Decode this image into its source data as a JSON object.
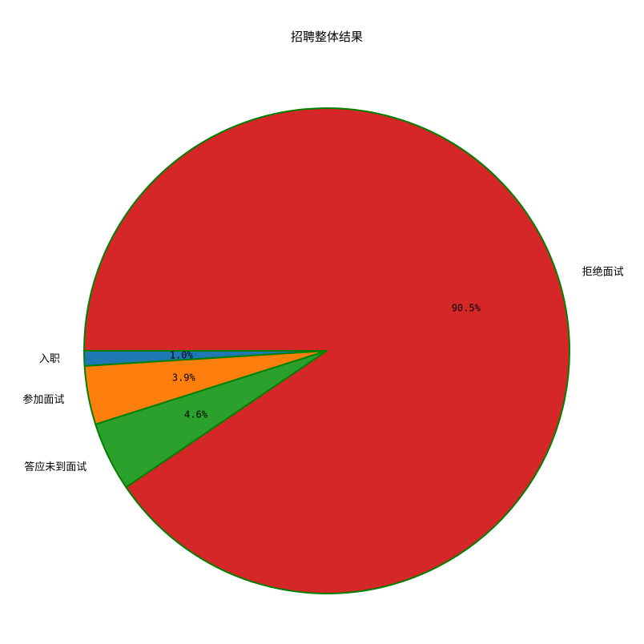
{
  "chart_data": {
    "type": "pie",
    "title": "招聘整体结果",
    "start_angle_deg": 180,
    "direction": "counterclockwise",
    "edge_color": "#008000",
    "slices": [
      {
        "label": "入职",
        "value": 1.0,
        "pct_label": "1.0%",
        "color": "#1f77b4"
      },
      {
        "label": "参加面试",
        "value": 3.9,
        "pct_label": "3.9%",
        "color": "#ff7f0e"
      },
      {
        "label": "答应未到面试",
        "value": 4.6,
        "pct_label": "4.6%",
        "color": "#2ca02c"
      },
      {
        "label": "拒绝面试",
        "value": 90.5,
        "pct_label": "90.5%",
        "color": "#d62728"
      }
    ]
  }
}
